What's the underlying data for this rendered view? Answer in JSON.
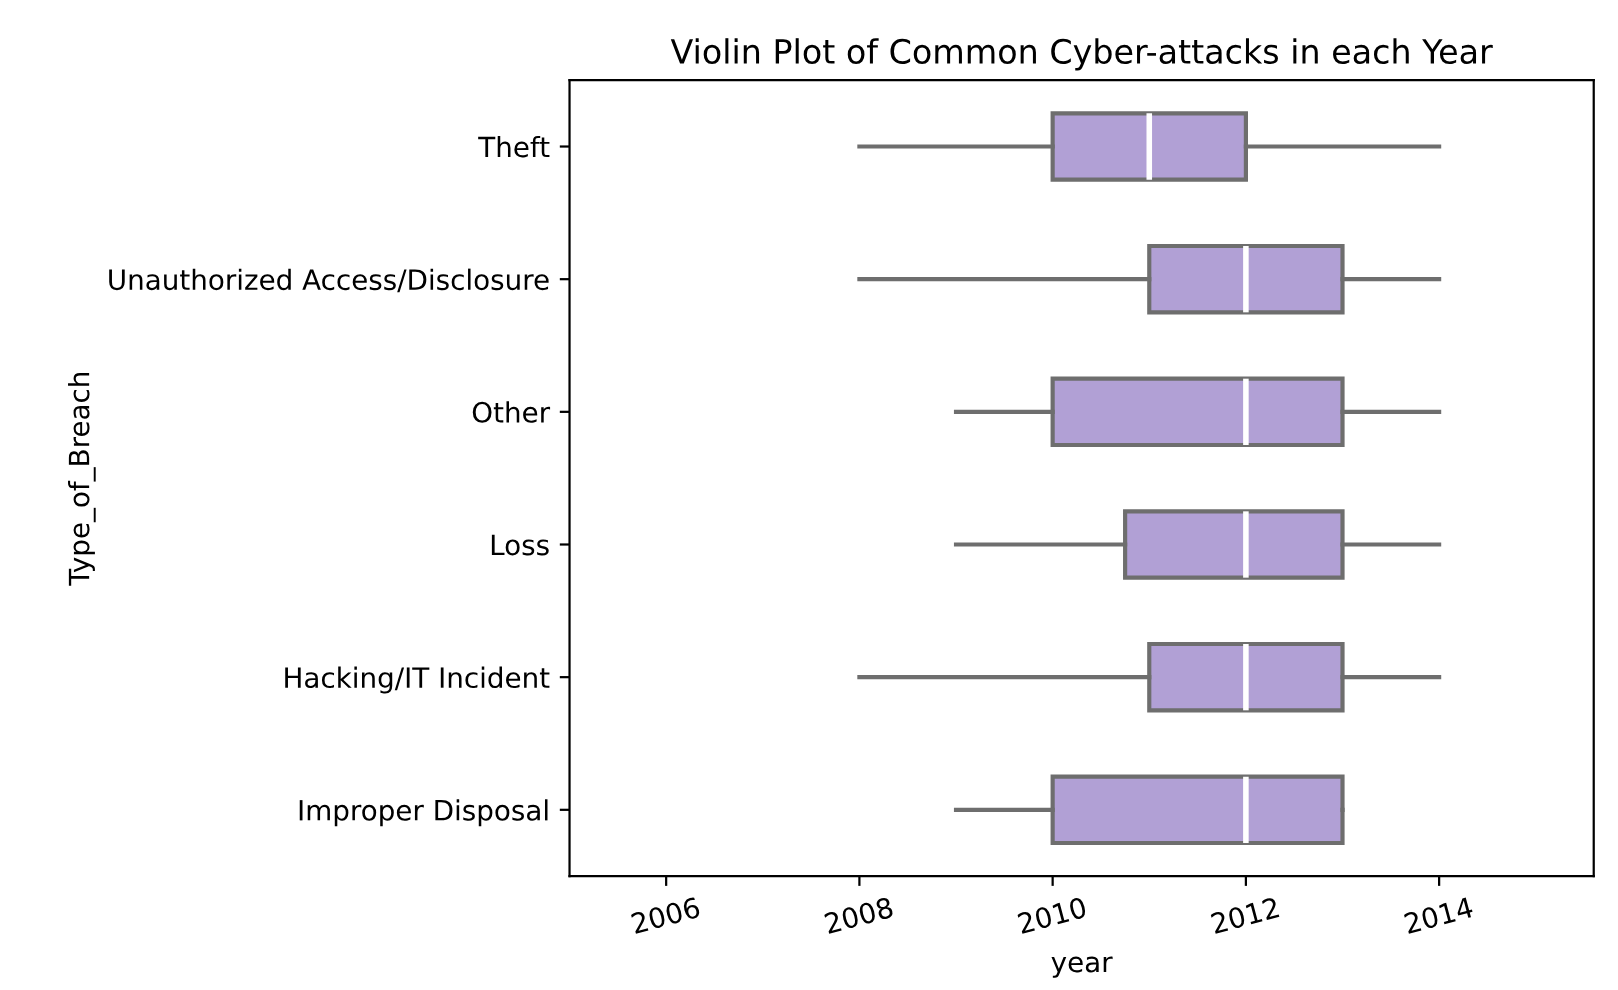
{
  "chart_data": {
    "type": "box",
    "orientation": "horizontal",
    "title": "Violin Plot of Common Cyber-attacks in each Year",
    "xlabel": "year",
    "ylabel": "Type_of_Breach",
    "categories": [
      "Theft",
      "Unauthorized Access/Disclosure",
      "Other",
      "Loss",
      "Hacking/IT Incident",
      "Improper Disposal"
    ],
    "color": "#b1a0d5",
    "boxes": [
      {
        "low": 2008,
        "q1": 2010,
        "median": 2011,
        "q3": 2012,
        "high": 2014
      },
      {
        "low": 2008,
        "q1": 2011,
        "median": 2012,
        "q3": 2013,
        "high": 2014
      },
      {
        "low": 2009,
        "q1": 2010,
        "median": 2012,
        "q3": 2013,
        "high": 2014
      },
      {
        "low": 2009,
        "q1": 2010.75,
        "median": 2012,
        "q3": 2013,
        "high": 2014
      },
      {
        "low": 2008,
        "q1": 2011,
        "median": 2012,
        "q3": 2013,
        "high": 2014
      },
      {
        "low": 2009,
        "q1": 2010,
        "median": 2012,
        "q3": 2013,
        "high": 2013
      }
    ],
    "xlim": [
      2005.0,
      2015.6
    ],
    "xticks": [
      2006,
      2008,
      2010,
      2012,
      2014
    ],
    "grid": false,
    "legend": false
  }
}
